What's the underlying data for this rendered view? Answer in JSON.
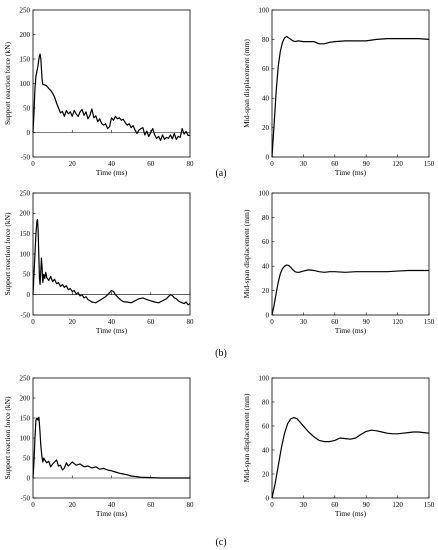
{
  "figure": {
    "panel_labels": [
      "(a)",
      "(b)",
      "(c)"
    ]
  },
  "chart_data": [
    {
      "type": "line",
      "row": 0,
      "col": 0,
      "xlabel": "Time (ms)",
      "ylabel": "Support reaction force (kN)",
      "xlim": [
        0,
        80
      ],
      "ylim": [
        -50,
        250
      ],
      "xticks": [
        0,
        20,
        40,
        60,
        80
      ],
      "yticks": [
        -50,
        0,
        50,
        100,
        150,
        200,
        250
      ],
      "grid": false,
      "line_color": "#000000",
      "series": [
        {
          "x": [
            0,
            0.5,
            1,
            1.5,
            2,
            2.5,
            3,
            3.3,
            3.6,
            4,
            4.3,
            4.6,
            5,
            6,
            7,
            8,
            9,
            10,
            11,
            12,
            13,
            14,
            15,
            16,
            17,
            18,
            19,
            20,
            21,
            22,
            23,
            24,
            25,
            26,
            27,
            28,
            29,
            30,
            31,
            32,
            33,
            34,
            35,
            36,
            37,
            38,
            39,
            40,
            41,
            42,
            43,
            44,
            45,
            46,
            47,
            48,
            49,
            50,
            51,
            52,
            53,
            54,
            55,
            56,
            57,
            58,
            59,
            60,
            61,
            62,
            63,
            64,
            65,
            66,
            67,
            68,
            69,
            70,
            71,
            72,
            73,
            74,
            75,
            76,
            77,
            78,
            79,
            80
          ],
          "y": [
            0,
            40,
            90,
            115,
            125,
            135,
            150,
            157,
            160,
            150,
            130,
            110,
            98,
            97,
            95,
            90,
            86,
            80,
            72,
            60,
            50,
            40,
            43,
            33,
            45,
            38,
            42,
            33,
            45,
            38,
            33,
            42,
            47,
            35,
            42,
            28,
            35,
            48,
            30,
            34,
            22,
            28,
            18,
            15,
            18,
            8,
            12,
            30,
            25,
            33,
            28,
            30,
            25,
            27,
            20,
            15,
            18,
            10,
            14,
            5,
            -2,
            5,
            8,
            10,
            -5,
            3,
            -8,
            0,
            8,
            -5,
            -12,
            -8,
            -16,
            -5,
            -14,
            -10,
            -12,
            -5,
            -13,
            -2,
            -14,
            -8,
            -10,
            8,
            -3,
            2,
            -6,
            -6
          ]
        }
      ]
    },
    {
      "type": "line",
      "row": 0,
      "col": 1,
      "xlabel": "Time (ms)",
      "ylabel": "Mid-span displacement (mm)",
      "xlim": [
        0,
        150
      ],
      "ylim": [
        0,
        100
      ],
      "xticks": [
        0,
        30,
        60,
        90,
        120,
        150
      ],
      "yticks": [
        0,
        20,
        40,
        60,
        80,
        100
      ],
      "grid": false,
      "line_color": "#000000",
      "series": [
        {
          "x": [
            0,
            2,
            4,
            6,
            8,
            10,
            12,
            14,
            16,
            18,
            20,
            22,
            25,
            30,
            35,
            40,
            45,
            50,
            55,
            60,
            70,
            80,
            90,
            100,
            110,
            120,
            130,
            140,
            150
          ],
          "y": [
            0,
            22,
            45,
            62,
            72,
            78,
            81,
            82,
            81,
            80,
            79,
            78.5,
            79,
            78.5,
            78.5,
            78.5,
            77,
            77,
            78,
            78.5,
            79,
            79,
            79,
            80,
            80.5,
            80.5,
            80.5,
            80.5,
            80
          ]
        }
      ]
    },
    {
      "type": "line",
      "row": 1,
      "col": 0,
      "xlabel": "Time (ms)",
      "ylabel": "Support reaction force (kN)",
      "xlim": [
        0,
        80
      ],
      "ylim": [
        -50,
        250
      ],
      "xticks": [
        0,
        20,
        40,
        60,
        80
      ],
      "yticks": [
        -50,
        0,
        50,
        100,
        150,
        200,
        250
      ],
      "grid": false,
      "line_color": "#000000",
      "series": [
        {
          "x": [
            0,
            0.5,
            1,
            1.5,
            2,
            2.3,
            2.6,
            3,
            3.3,
            3.6,
            4,
            4.3,
            4.6,
            5,
            5.5,
            6,
            6.5,
            7,
            8,
            9,
            10,
            11,
            12,
            13,
            14,
            15,
            16,
            17,
            18,
            19,
            20,
            21,
            22,
            23,
            24,
            25,
            26,
            27,
            28,
            30,
            32,
            34,
            36,
            37,
            38,
            39,
            40,
            41,
            42,
            43,
            44,
            45,
            46,
            47,
            48,
            50,
            52,
            54,
            56,
            58,
            60,
            62,
            64,
            66,
            68,
            69,
            70,
            71,
            72,
            73,
            74,
            75,
            76,
            77,
            78,
            79,
            80
          ],
          "y": [
            0,
            50,
            100,
            150,
            180,
            185,
            160,
            90,
            40,
            25,
            60,
            90,
            70,
            30,
            50,
            40,
            55,
            42,
            35,
            45,
            32,
            38,
            27,
            30,
            20,
            25,
            18,
            22,
            12,
            15,
            8,
            10,
            2,
            5,
            -3,
            0,
            -8,
            -5,
            -12,
            -18,
            -20,
            -14,
            -8,
            -5,
            0,
            5,
            10,
            8,
            0,
            -5,
            -10,
            -14,
            -17,
            -18,
            -18,
            -20,
            -15,
            -10,
            -8,
            -12,
            -15,
            -18,
            -20,
            -15,
            -10,
            -5,
            0,
            -2,
            -8,
            -10,
            -15,
            -18,
            -20,
            -22,
            -18,
            -25,
            -22
          ]
        }
      ]
    },
    {
      "type": "line",
      "row": 1,
      "col": 1,
      "xlabel": "Time (ms)",
      "ylabel": "Mid-span displacement (mm)",
      "xlim": [
        0,
        150
      ],
      "ylim": [
        0,
        100
      ],
      "xticks": [
        0,
        30,
        60,
        90,
        120,
        150
      ],
      "yticks": [
        0,
        20,
        40,
        60,
        80,
        100
      ],
      "grid": false,
      "line_color": "#000000",
      "series": [
        {
          "x": [
            0,
            2,
            4,
            6,
            8,
            10,
            12,
            14,
            16,
            18,
            20,
            22,
            24,
            26,
            28,
            30,
            35,
            40,
            45,
            50,
            55,
            60,
            70,
            80,
            90,
            100,
            110,
            120,
            130,
            140,
            150
          ],
          "y": [
            0,
            8,
            18,
            27,
            34,
            38,
            40,
            41,
            40.5,
            39,
            37,
            35.5,
            35,
            35,
            35.5,
            36,
            37,
            36.5,
            35.5,
            35,
            35.5,
            35.5,
            35,
            35.5,
            35.5,
            35.5,
            35.5,
            36,
            36.5,
            36.5,
            36.5
          ]
        }
      ]
    },
    {
      "type": "line",
      "row": 2,
      "col": 0,
      "xlabel": "Time (ms)",
      "ylabel": "Support reaction force (kN)",
      "xlim": [
        0,
        80
      ],
      "ylim": [
        -50,
        250
      ],
      "xticks": [
        0,
        20,
        40,
        60,
        80
      ],
      "yticks": [
        -50,
        0,
        50,
        100,
        150,
        200,
        250
      ],
      "grid": false,
      "line_color": "#000000",
      "series": [
        {
          "x": [
            0,
            0.5,
            1,
            1.5,
            2,
            2.5,
            3,
            3.5,
            4,
            4.5,
            5,
            5.5,
            6,
            7,
            8,
            9,
            10,
            11,
            12,
            13,
            14,
            15,
            16,
            17,
            18,
            19,
            20,
            22,
            24,
            26,
            28,
            30,
            32,
            34,
            36,
            38,
            40,
            42,
            44,
            46,
            48,
            50,
            55,
            60,
            65,
            70,
            75,
            80
          ],
          "y": [
            0,
            40,
            100,
            145,
            150,
            145,
            152,
            120,
            80,
            55,
            40,
            50,
            45,
            38,
            42,
            28,
            35,
            40,
            45,
            30,
            32,
            20,
            25,
            38,
            30,
            35,
            40,
            32,
            35,
            28,
            30,
            25,
            28,
            22,
            24,
            20,
            18,
            15,
            12,
            10,
            8,
            5,
            2,
            1,
            0,
            0,
            0,
            0
          ]
        }
      ]
    },
    {
      "type": "line",
      "row": 2,
      "col": 1,
      "xlabel": "Time (ms)",
      "ylabel": "Mid-span displacement (mm)",
      "xlim": [
        0,
        150
      ],
      "ylim": [
        0,
        100
      ],
      "xticks": [
        0,
        30,
        60,
        90,
        120,
        150
      ],
      "yticks": [
        0,
        20,
        40,
        60,
        80,
        100
      ],
      "grid": false,
      "line_color": "#000000",
      "series": [
        {
          "x": [
            0,
            3,
            6,
            9,
            12,
            15,
            18,
            21,
            24,
            27,
            30,
            35,
            40,
            45,
            50,
            55,
            60,
            65,
            70,
            75,
            80,
            85,
            90,
            95,
            100,
            105,
            110,
            115,
            120,
            125,
            130,
            135,
            140,
            145,
            150
          ],
          "y": [
            0,
            12,
            27,
            42,
            54,
            62,
            66,
            67,
            66,
            63,
            60,
            55,
            51,
            48,
            47,
            47,
            48,
            50,
            49.5,
            49,
            50,
            53,
            55.5,
            56.5,
            56,
            55,
            54,
            53.5,
            53.5,
            54,
            54.5,
            55,
            55,
            54.5,
            54
          ]
        }
      ]
    }
  ]
}
